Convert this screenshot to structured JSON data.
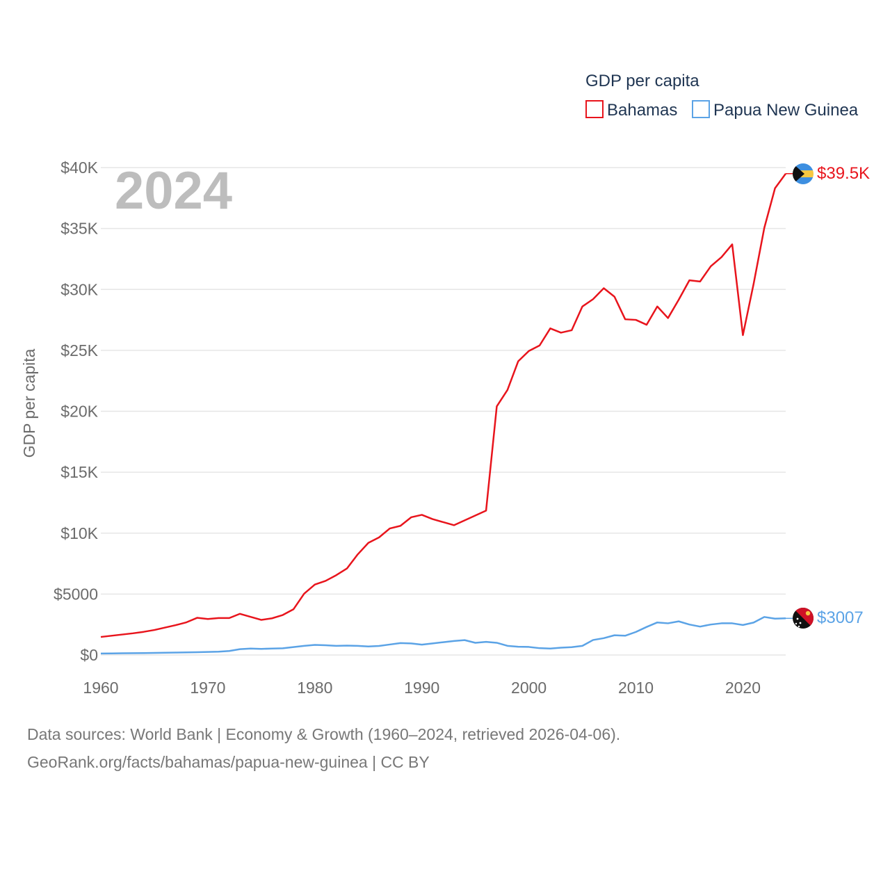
{
  "colors": {
    "bahamas": "#e8141c",
    "png": "#5ba3e6",
    "grid": "#e6e6e6",
    "tick_text": "#6b6b6b"
  },
  "icons": {
    "bahamas": "bahamas-flag-icon",
    "png": "papua-new-guinea-flag-icon"
  },
  "chart_data": {
    "type": "line",
    "year_label": "2024",
    "ylabel": "GDP per capita",
    "xlim": [
      1960,
      2024
    ],
    "ylim": [
      0,
      40000
    ],
    "x_ticks": [
      1960,
      1970,
      1980,
      1990,
      2000,
      2010,
      2020
    ],
    "x_tick_labels": [
      "1960",
      "1970",
      "1980",
      "1990",
      "2000",
      "2010",
      "2020"
    ],
    "y_ticks": [
      0,
      5000,
      10000,
      15000,
      20000,
      25000,
      30000,
      35000,
      40000
    ],
    "y_tick_labels": [
      "$0",
      "$5000",
      "$10K",
      "$15K",
      "$20K",
      "$25K",
      "$30K",
      "$35K",
      "$40K"
    ],
    "legend": {
      "title": "GDP per capita",
      "position": "top-right",
      "entries": [
        "Bahamas",
        "Papua New Guinea"
      ]
    },
    "series": [
      {
        "name": "Bahamas",
        "end_label": "$39.5K",
        "x": [
          1960,
          1961,
          1962,
          1963,
          1964,
          1965,
          1966,
          1967,
          1968,
          1969,
          1970,
          1971,
          1972,
          1973,
          1974,
          1975,
          1976,
          1977,
          1978,
          1979,
          1980,
          1981,
          1982,
          1983,
          1984,
          1985,
          1986,
          1987,
          1988,
          1989,
          1990,
          1991,
          1992,
          1993,
          1994,
          1995,
          1996,
          1997,
          1998,
          1999,
          2000,
          2001,
          2002,
          2003,
          2004,
          2005,
          2006,
          2007,
          2008,
          2009,
          2010,
          2011,
          2012,
          2013,
          2014,
          2015,
          2016,
          2017,
          2018,
          2019,
          2020,
          2021,
          2022,
          2023,
          2024
        ],
        "values": [
          1480,
          1580,
          1680,
          1780,
          1900,
          2050,
          2250,
          2450,
          2680,
          3050,
          2950,
          3030,
          3030,
          3380,
          3130,
          2880,
          3010,
          3280,
          3750,
          5030,
          5780,
          6080,
          6550,
          7100,
          8250,
          9200,
          9650,
          10380,
          10600,
          11300,
          11500,
          11150,
          10900,
          10650,
          11050,
          11450,
          11850,
          20400,
          21750,
          24100,
          24950,
          25400,
          26800,
          26450,
          26650,
          28600,
          29200,
          30100,
          29400,
          27550,
          27500,
          27100,
          28600,
          27650,
          29150,
          30750,
          30650,
          31900,
          32650,
          33700,
          26250,
          30450,
          35050,
          38300,
          39500
        ]
      },
      {
        "name": "Papua New Guinea",
        "end_label": "$3007",
        "x": [
          1960,
          1961,
          1962,
          1963,
          1964,
          1965,
          1966,
          1967,
          1968,
          1969,
          1970,
          1971,
          1972,
          1973,
          1974,
          1975,
          1976,
          1977,
          1978,
          1979,
          1980,
          1981,
          1982,
          1983,
          1984,
          1985,
          1986,
          1987,
          1988,
          1989,
          1990,
          1991,
          1992,
          1993,
          1994,
          1995,
          1996,
          1997,
          1998,
          1999,
          2000,
          2001,
          2002,
          2003,
          2004,
          2005,
          2006,
          2007,
          2008,
          2009,
          2010,
          2011,
          2012,
          2013,
          2014,
          2015,
          2016,
          2017,
          2018,
          2019,
          2020,
          2021,
          2022,
          2023,
          2024
        ],
        "values": [
          120,
          130,
          140,
          150,
          160,
          170,
          185,
          200,
          215,
          230,
          250,
          270,
          330,
          480,
          530,
          500,
          530,
          550,
          650,
          750,
          830,
          800,
          750,
          770,
          750,
          700,
          740,
          860,
          980,
          950,
          850,
          950,
          1050,
          1150,
          1220,
          1000,
          1080,
          1000,
          750,
          680,
          660,
          560,
          530,
          600,
          640,
          750,
          1230,
          1380,
          1620,
          1580,
          1890,
          2300,
          2670,
          2600,
          2760,
          2500,
          2330,
          2500,
          2600,
          2600,
          2460,
          2660,
          3120,
          2980,
          3007
        ]
      }
    ]
  },
  "footer": {
    "line1": "Data sources: World Bank | Economy & Growth (1960–2024, retrieved 2026-04-06).",
    "line2": "GeoRank.org/facts/bahamas/papua-new-guinea | CC BY"
  }
}
